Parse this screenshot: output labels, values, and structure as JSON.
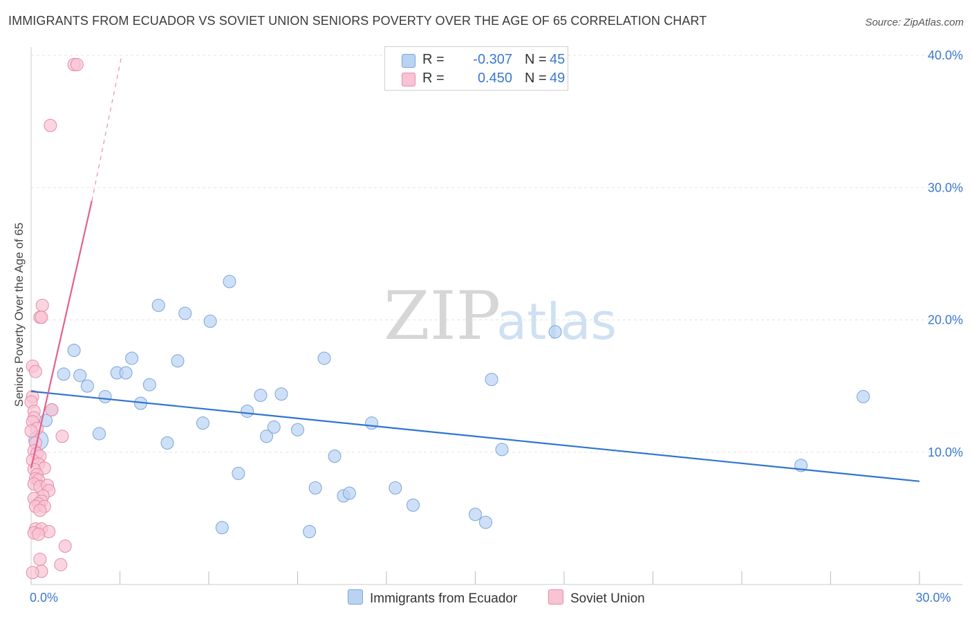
{
  "header": {
    "title": "IMMIGRANTS FROM ECUADOR VS SOVIET UNION SENIORS POVERTY OVER THE AGE OF 65 CORRELATION CHART",
    "source": "Source: ZipAtlas.com"
  },
  "stats": [
    {
      "r_label": "R =",
      "r_value": "-0.307",
      "n_label": "N =",
      "n_value": "45",
      "color": "#b9d3f3",
      "stroke": "#7aa3d8"
    },
    {
      "r_label": "R =",
      "r_value": "0.450",
      "n_label": "N =",
      "n_value": "49",
      "color": "#f8c3d3",
      "stroke": "#e58aa6"
    }
  ],
  "legend": [
    {
      "label": "Immigrants from Ecuador",
      "color": "#b9d3f3",
      "stroke": "#7aa3d8"
    },
    {
      "label": "Soviet Union",
      "color": "#f8c3d3",
      "stroke": "#e58aa6"
    }
  ],
  "watermark": {
    "zip": "ZIP",
    "atlas": "atlas"
  },
  "chart_data": {
    "type": "scatter",
    "title": "IMMIGRANTS FROM ECUADOR VS SOVIET UNION SENIORS POVERTY OVER THE AGE OF 65 CORRELATION CHART",
    "xlabel": "",
    "ylabel": "Seniors Poverty Over the Age of 65",
    "xlim": [
      0,
      30
    ],
    "ylim": [
      0,
      40
    ],
    "x_tick_labels": [
      {
        "value": 0,
        "label": "0.0%"
      },
      {
        "value": 30,
        "label": "30.0%"
      }
    ],
    "y_tick_labels": [
      {
        "value": 10,
        "label": "10.0%"
      },
      {
        "value": 20,
        "label": "20.0%"
      },
      {
        "value": 30,
        "label": "30.0%"
      },
      {
        "value": 40,
        "label": "40.0%"
      }
    ],
    "series": [
      {
        "name": "Immigrants from Ecuador",
        "color": "#b9d3f3",
        "stroke": "#7aa3d8",
        "trend": {
          "x0": 0.0,
          "y0": 14.6,
          "x1": 30.0,
          "y1": 7.8,
          "color": "#2f74d0"
        },
        "points": [
          [
            0.25,
            10.9,
            14
          ],
          [
            0.5,
            12.4,
            9
          ],
          [
            0.7,
            13.2,
            9
          ],
          [
            1.1,
            15.9,
            9
          ],
          [
            1.45,
            17.7,
            9
          ],
          [
            1.65,
            15.8,
            9
          ],
          [
            1.9,
            15.0,
            9
          ],
          [
            2.3,
            11.4,
            9
          ],
          [
            2.5,
            14.2,
            9
          ],
          [
            2.9,
            16.0,
            9
          ],
          [
            3.2,
            16.0,
            9
          ],
          [
            3.4,
            17.1,
            9
          ],
          [
            3.7,
            13.7,
            9
          ],
          [
            4.0,
            15.1,
            9
          ],
          [
            4.3,
            21.1,
            9
          ],
          [
            4.6,
            10.7,
            9
          ],
          [
            4.95,
            16.9,
            9
          ],
          [
            5.2,
            20.5,
            9
          ],
          [
            5.8,
            12.2,
            9
          ],
          [
            6.05,
            19.9,
            9
          ],
          [
            6.45,
            4.3,
            9
          ],
          [
            6.7,
            22.9,
            9
          ],
          [
            7.0,
            8.4,
            9
          ],
          [
            7.3,
            13.1,
            9
          ],
          [
            7.75,
            14.3,
            9
          ],
          [
            7.95,
            11.2,
            9
          ],
          [
            8.2,
            11.9,
            9
          ],
          [
            8.45,
            14.4,
            9
          ],
          [
            9.0,
            11.7,
            9
          ],
          [
            9.4,
            4.0,
            9
          ],
          [
            9.6,
            7.3,
            9
          ],
          [
            9.9,
            17.1,
            9
          ],
          [
            10.25,
            9.7,
            9
          ],
          [
            10.55,
            6.7,
            9
          ],
          [
            10.75,
            6.9,
            9
          ],
          [
            11.5,
            12.2,
            9
          ],
          [
            12.3,
            7.3,
            9
          ],
          [
            12.9,
            6.0,
            9
          ],
          [
            15.0,
            5.3,
            9
          ],
          [
            15.35,
            4.7,
            9
          ],
          [
            15.55,
            15.5,
            9
          ],
          [
            15.9,
            10.2,
            9
          ],
          [
            17.7,
            19.1,
            9
          ],
          [
            26.0,
            9.0,
            9
          ],
          [
            28.1,
            14.2,
            9
          ]
        ]
      },
      {
        "name": "Soviet Union",
        "color": "#f8c3d3",
        "stroke": "#e58aa6",
        "trend": {
          "x0": 0.0,
          "y0": 8.8,
          "x1": 2.05,
          "y1": 29.0,
          "dash_x1": 3.05,
          "dash_y1": 39.9,
          "color": "#e0608c"
        },
        "points": [
          [
            1.45,
            39.3,
            9
          ],
          [
            1.55,
            39.3,
            9
          ],
          [
            0.65,
            34.7,
            9
          ],
          [
            0.38,
            21.1,
            9
          ],
          [
            0.3,
            20.2,
            9
          ],
          [
            0.35,
            20.2,
            9
          ],
          [
            0.05,
            16.5,
            9
          ],
          [
            0.15,
            16.1,
            9
          ],
          [
            0.05,
            14.2,
            9
          ],
          [
            0.0,
            13.8,
            9
          ],
          [
            0.1,
            13.1,
            9
          ],
          [
            0.7,
            13.2,
            9
          ],
          [
            0.1,
            12.6,
            9
          ],
          [
            0.05,
            12.3,
            9
          ],
          [
            0.2,
            11.8,
            9
          ],
          [
            0.0,
            11.6,
            9
          ],
          [
            1.05,
            11.2,
            9
          ],
          [
            0.15,
            10.7,
            9
          ],
          [
            0.1,
            10.1,
            9
          ],
          [
            0.2,
            9.9,
            9
          ],
          [
            0.3,
            9.7,
            9
          ],
          [
            0.05,
            9.4,
            9
          ],
          [
            0.25,
            9.1,
            9
          ],
          [
            0.45,
            8.8,
            9
          ],
          [
            0.1,
            8.7,
            9
          ],
          [
            0.2,
            8.3,
            9
          ],
          [
            0.15,
            8.0,
            9
          ],
          [
            0.25,
            7.9,
            9
          ],
          [
            0.1,
            7.6,
            9
          ],
          [
            0.3,
            7.4,
            9
          ],
          [
            0.55,
            7.5,
            9
          ],
          [
            0.6,
            7.1,
            9
          ],
          [
            0.4,
            6.7,
            9
          ],
          [
            0.1,
            6.5,
            9
          ],
          [
            0.35,
            6.3,
            9
          ],
          [
            0.25,
            6.1,
            9
          ],
          [
            0.15,
            5.9,
            9
          ],
          [
            0.45,
            5.9,
            9
          ],
          [
            0.3,
            5.6,
            9
          ],
          [
            0.15,
            4.2,
            9
          ],
          [
            0.35,
            4.2,
            9
          ],
          [
            0.6,
            4.0,
            9
          ],
          [
            0.1,
            3.9,
            9
          ],
          [
            0.25,
            3.8,
            9
          ],
          [
            1.15,
            2.9,
            9
          ],
          [
            0.3,
            1.9,
            9
          ],
          [
            1.0,
            1.5,
            9
          ],
          [
            0.35,
            1.0,
            9
          ],
          [
            0.05,
            0.9,
            9
          ]
        ]
      }
    ]
  }
}
